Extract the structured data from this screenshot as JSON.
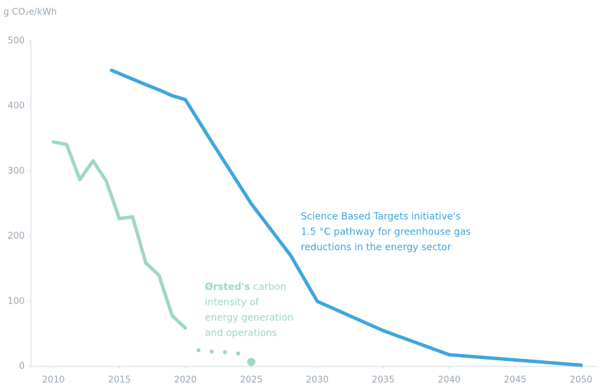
{
  "chart_data": {
    "type": "line",
    "ylabel": "g CO₂e/kWh",
    "xlim": [
      2010,
      2050
    ],
    "xticks": [
      2010,
      2015,
      2020,
      2025,
      2030,
      2035,
      2040,
      2045,
      2050
    ],
    "ylim": [
      0,
      500
    ],
    "yticks": [
      0,
      100,
      200,
      300,
      400,
      500
    ],
    "grid": false,
    "series": [
      {
        "color": "#9fd8c1",
        "style": "solid",
        "x": [
          2010,
          2011,
          2012,
          2013,
          2014,
          2015,
          2016,
          2017,
          2018,
          2019,
          2020
        ],
        "values": [
          345,
          341,
          287,
          316,
          285,
          227,
          230,
          159,
          140,
          78,
          59
        ]
      },
      {
        "color": "#9fd8c1",
        "style": "dotted",
        "x": [
          2021,
          2022,
          2023,
          2024,
          2025
        ],
        "values": [
          25,
          23,
          22,
          20,
          7
        ]
      },
      {
        "color": "#3fa6dc",
        "style": "solid",
        "x": [
          2014.4,
          2015,
          2017,
          2018,
          2019,
          2020,
          2022,
          2025,
          2028,
          2030,
          2035,
          2040,
          2045,
          2050
        ],
        "values": [
          455,
          450,
          433,
          425,
          416,
          410,
          345,
          250,
          170,
          100,
          55,
          18,
          10,
          2
        ]
      }
    ],
    "annotations": [
      {
        "color": "#9fd8c1",
        "bold": "Ørsted's",
        "lines": [
          " carbon",
          "intensity of",
          "energy generation",
          "and operations"
        ]
      },
      {
        "color": "#3fa6dc",
        "lines": [
          "Science Based Targets initiative's",
          "1.5 °C pathway for greenhouse gas",
          "reductions in the energy sector"
        ]
      }
    ]
  }
}
